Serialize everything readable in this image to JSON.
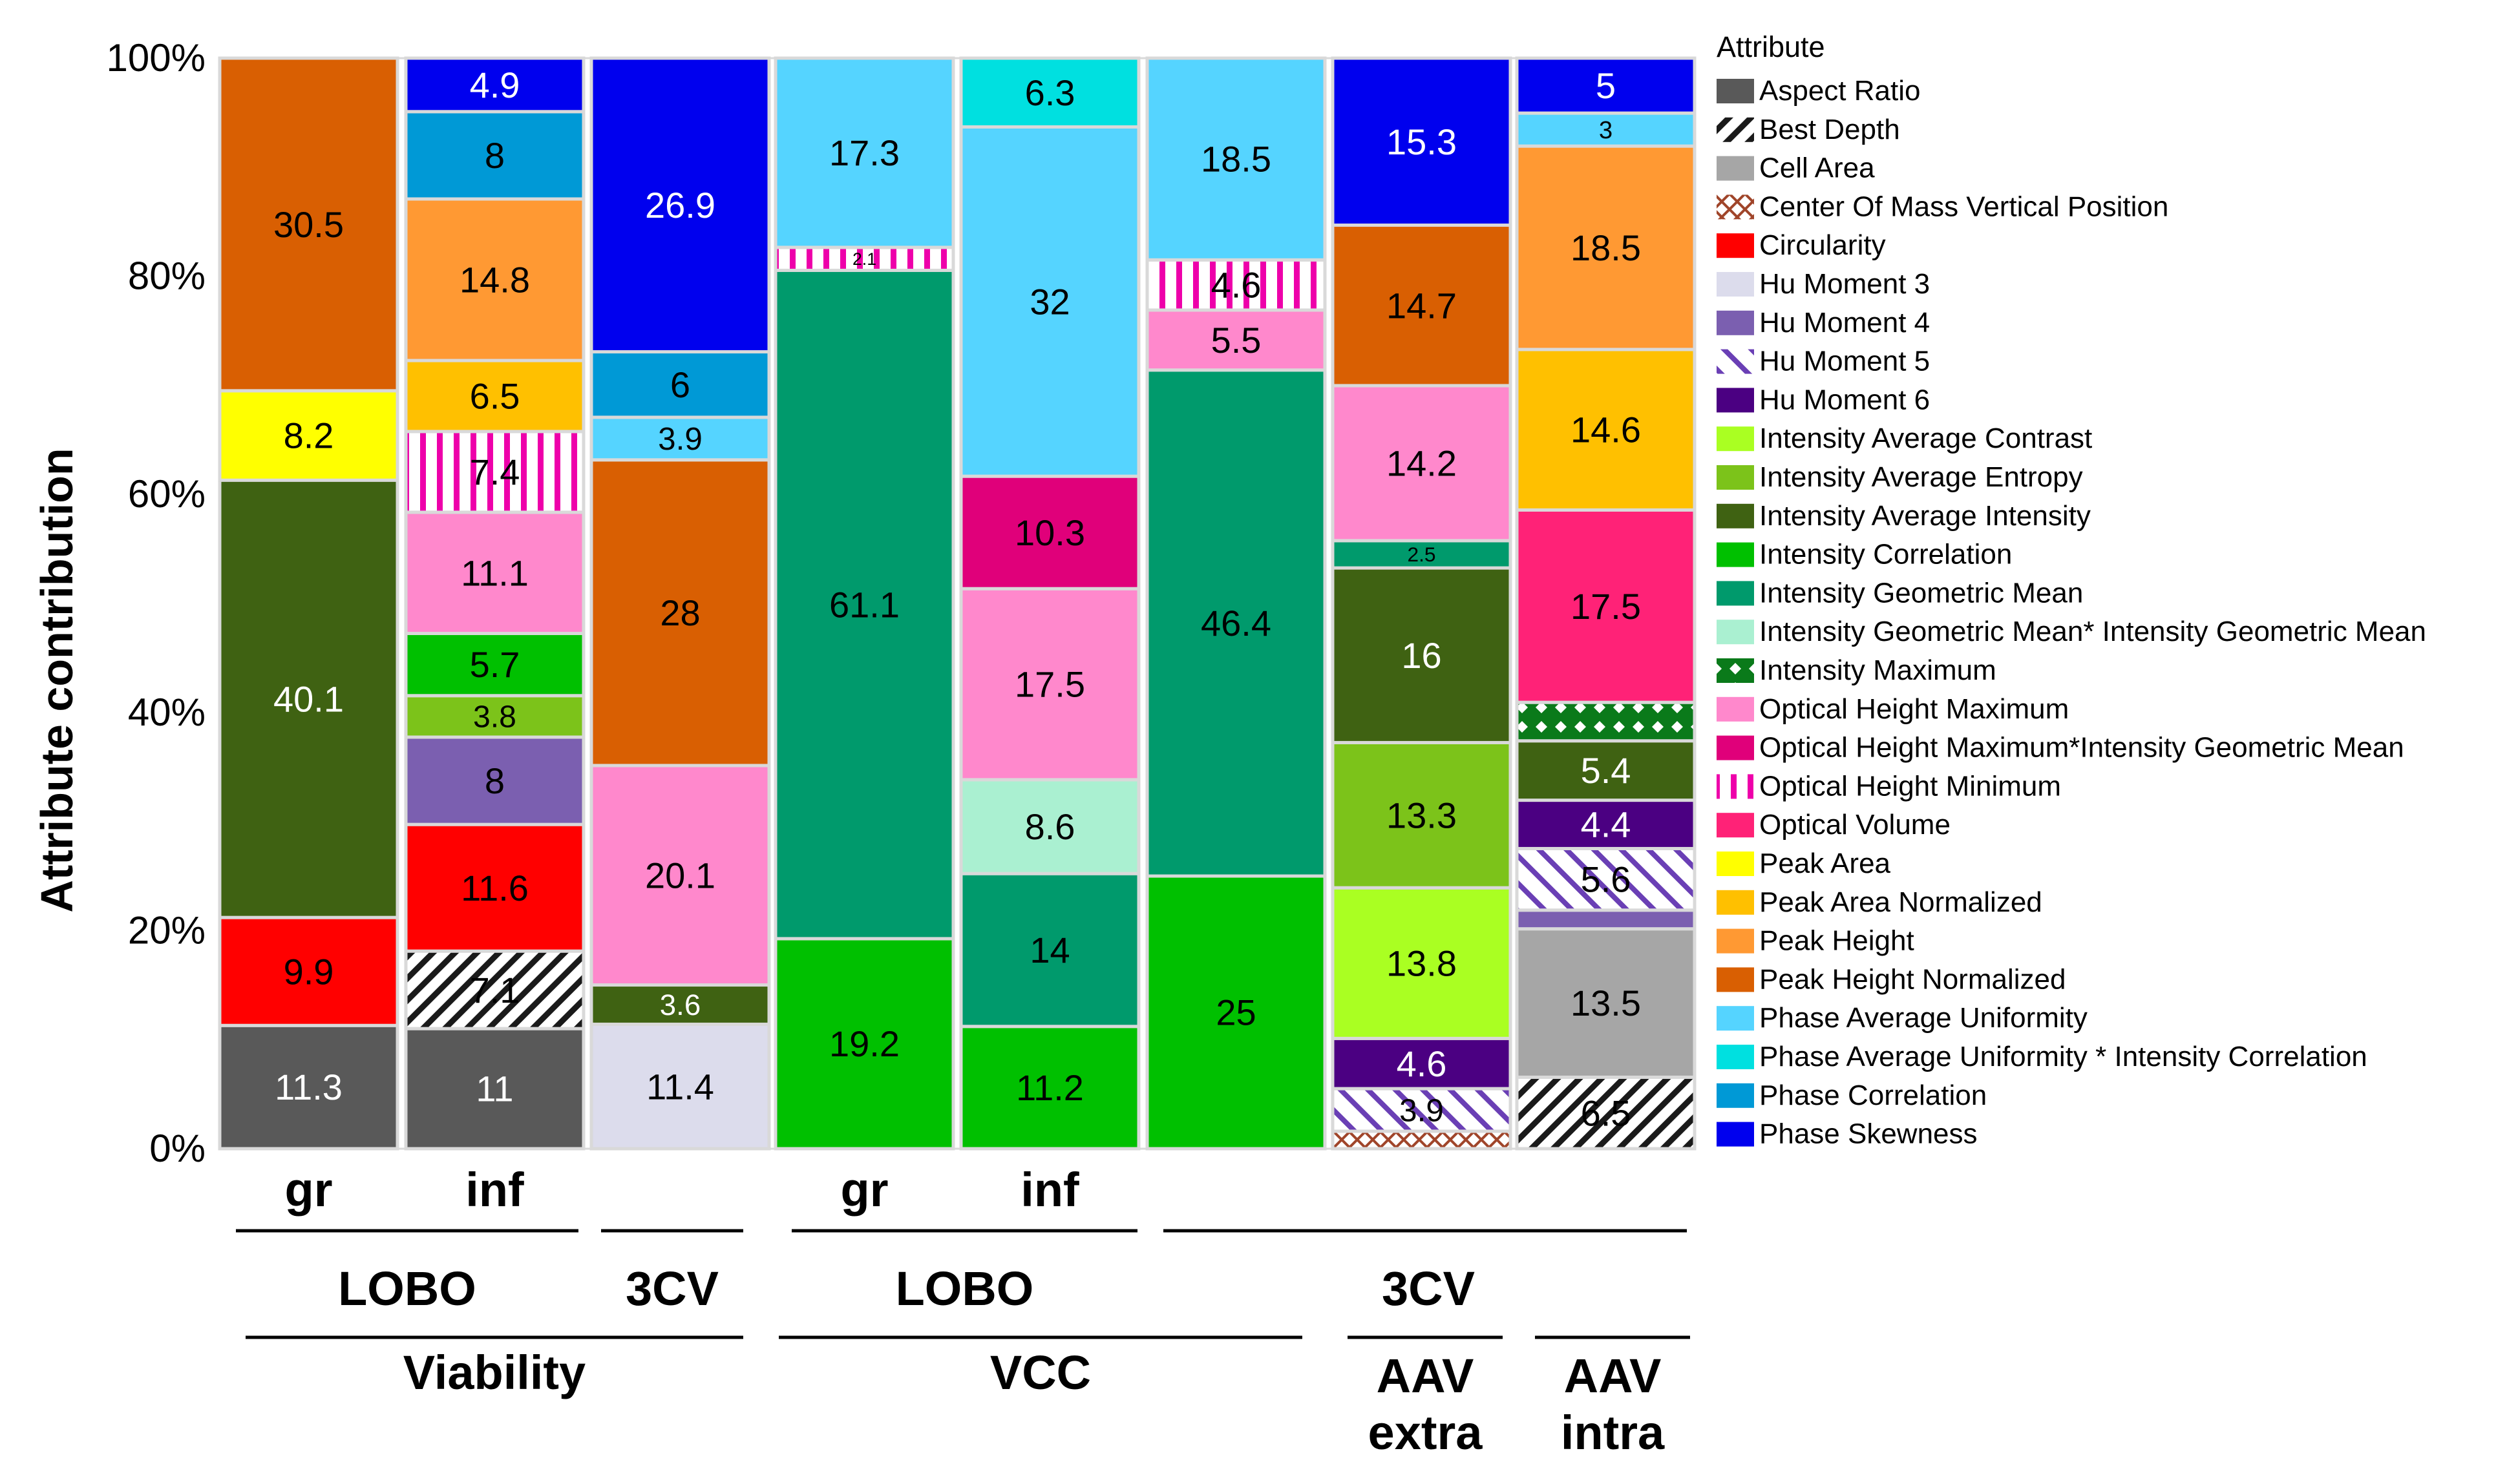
{
  "chart_data": {
    "type": "bar",
    "stacked": true,
    "normalized": true,
    "ylabel": "Attribute contribution",
    "yticks": [
      "0%",
      "20%",
      "40%",
      "60%",
      "80%",
      "100%"
    ],
    "ylim": [
      0,
      100
    ],
    "legend_title": "Attribute",
    "legend": [
      {
        "name": "Aspect Ratio",
        "color": "#595959",
        "pattern": "none"
      },
      {
        "name": "Best Depth",
        "color": "#ffffff",
        "pattern": "diag"
      },
      {
        "name": "Cell Area",
        "color": "#a6a6a6",
        "pattern": "none"
      },
      {
        "name": "Center Of Mass Vertical Position",
        "color": "#ffffff",
        "pattern": "crossbrown"
      },
      {
        "name": "Circularity",
        "color": "#ff0000",
        "pattern": "none"
      },
      {
        "name": "Hu Moment 3",
        "color": "#dcdcec",
        "pattern": "none"
      },
      {
        "name": "Hu Moment 4",
        "color": "#7b5fb0",
        "pattern": "none"
      },
      {
        "name": "Hu Moment 5",
        "color": "#ffffff",
        "pattern": "diagpurple"
      },
      {
        "name": "Hu Moment 6",
        "color": "#4b0082",
        "pattern": "none"
      },
      {
        "name": "Intensity Average Contrast",
        "color": "#aaff22",
        "pattern": "none"
      },
      {
        "name": "Intensity Average Entropy",
        "color": "#7cc31a",
        "pattern": "none"
      },
      {
        "name": "Intensity Average Intensity",
        "color": "#3f6212",
        "pattern": "none"
      },
      {
        "name": "Intensity Correlation",
        "color": "#00c000",
        "pattern": "none"
      },
      {
        "name": "Intensity Geometric Mean",
        "color": "#009a6c",
        "pattern": "none"
      },
      {
        "name": "Intensity Geometric Mean* Intensity Geometric Mean",
        "color": "#aaf0d1",
        "pattern": "none"
      },
      {
        "name": "Intensity Maximum",
        "color": "#0a7a1a",
        "pattern": "checker"
      },
      {
        "name": "Optical Height Maximum",
        "color": "#ff88cc",
        "pattern": "none"
      },
      {
        "name": "Optical Height Maximum*Intensity  Geometric Mean",
        "color": "#e0007a",
        "pattern": "none"
      },
      {
        "name": "Optical Height Minimum",
        "color": "#ffffff",
        "pattern": "vstripe"
      },
      {
        "name": "Optical Volume",
        "color": "#ff2277",
        "pattern": "none"
      },
      {
        "name": "Peak Area",
        "color": "#ffff00",
        "pattern": "none"
      },
      {
        "name": "Peak Area Normalized",
        "color": "#ffc000",
        "pattern": "none"
      },
      {
        "name": "Peak Height",
        "color": "#ff9933",
        "pattern": "none"
      },
      {
        "name": "Peak Height Normalized",
        "color": "#d95f02",
        "pattern": "none"
      },
      {
        "name": "Phase Average Uniformity",
        "color": "#55d4ff",
        "pattern": "none"
      },
      {
        "name": "Phase Average Uniformity * Intensity  Correlation",
        "color": "#00e0e0",
        "pattern": "none"
      },
      {
        "name": "Phase Correlation",
        "color": "#0099d6",
        "pattern": "none"
      },
      {
        "name": "Phase Skewness",
        "color": "#0000ee",
        "pattern": "none"
      }
    ],
    "bars": [
      {
        "label": "gr",
        "segments": [
          {
            "attr": "Aspect Ratio",
            "value": 11.3,
            "label": "11.3"
          },
          {
            "attr": "Circularity",
            "value": 9.9,
            "label": "9.9"
          },
          {
            "attr": "Intensity Average Intensity",
            "value": 40.1,
            "label": "40.1"
          },
          {
            "attr": "Peak Area",
            "value": 8.2,
            "label": "8.2"
          },
          {
            "attr": "Peak Height Normalized",
            "value": 30.5,
            "label": "30.5"
          }
        ]
      },
      {
        "label": "inf",
        "segments": [
          {
            "attr": "Aspect Ratio",
            "value": 11,
            "label": "11"
          },
          {
            "attr": "Best Depth",
            "value": 7.1,
            "label": "7.1"
          },
          {
            "attr": "Circularity",
            "value": 11.6,
            "label": "11.6"
          },
          {
            "attr": "Hu Moment 4",
            "value": 8,
            "label": "8"
          },
          {
            "attr": "Intensity Average Entropy",
            "value": 3.8,
            "label": "3.8"
          },
          {
            "attr": "Intensity Correlation",
            "value": 5.7,
            "label": "5.7"
          },
          {
            "attr": "Optical Height Maximum",
            "value": 11.1,
            "label": "11.1"
          },
          {
            "attr": "Optical Height Minimum",
            "value": 7.4,
            "label": "7.4"
          },
          {
            "attr": "Peak Area Normalized",
            "value": 6.5,
            "label": "6.5"
          },
          {
            "attr": "Peak Height",
            "value": 14.8,
            "label": "14.8"
          },
          {
            "attr": "Phase Correlation",
            "value": 8,
            "label": "8"
          },
          {
            "attr": "Phase Skewness",
            "value": 4.9,
            "label": "4.9"
          }
        ]
      },
      {
        "label": "",
        "segments": [
          {
            "attr": "Hu Moment 3",
            "value": 11.4,
            "label": "11.4"
          },
          {
            "attr": "Intensity Average Intensity",
            "value": 3.6,
            "label": "3.6"
          },
          {
            "attr": "Optical Height Maximum",
            "value": 20.1,
            "label": "20.1"
          },
          {
            "attr": "Peak Height Normalized",
            "value": 28,
            "label": "28"
          },
          {
            "attr": "Phase Average Uniformity",
            "value": 3.9,
            "label": "3.9"
          },
          {
            "attr": "Phase Correlation",
            "value": 6,
            "label": "6"
          },
          {
            "attr": "Phase Skewness",
            "value": 26.9,
            "label": "26.9"
          }
        ]
      },
      {
        "label": "gr",
        "segments": [
          {
            "attr": "Intensity Correlation",
            "value": 19.2,
            "label": "19.2"
          },
          {
            "attr": "Intensity Geometric Mean",
            "value": 61.1,
            "label": "61.1"
          },
          {
            "attr": "Optical Height Minimum",
            "value": 2.1,
            "label": "2.1"
          },
          {
            "attr": "Phase Average Uniformity",
            "value": 17.3,
            "label": "17.3"
          }
        ]
      },
      {
        "label": "inf",
        "segments": [
          {
            "attr": "Intensity Correlation",
            "value": 11.2,
            "label": "11.2"
          },
          {
            "attr": "Intensity Geometric Mean",
            "value": 14,
            "label": "14"
          },
          {
            "attr": "Intensity Geometric Mean* Intensity Geometric Mean",
            "value": 8.6,
            "label": "8.6"
          },
          {
            "attr": "Optical Height Maximum",
            "value": 17.5,
            "label": "17.5"
          },
          {
            "attr": "Optical Height Maximum*Intensity  Geometric Mean",
            "value": 10.3,
            "label": "10.3"
          },
          {
            "attr": "Phase Average Uniformity",
            "value": 32,
            "label": "32"
          },
          {
            "attr": "Phase Average Uniformity * Intensity  Correlation",
            "value": 6.3,
            "label": "6.3"
          }
        ]
      },
      {
        "label": "",
        "segments": [
          {
            "attr": "Intensity Correlation",
            "value": 25,
            "label": "25"
          },
          {
            "attr": "Intensity Geometric Mean",
            "value": 46.4,
            "label": "46.4"
          },
          {
            "attr": "Optical Height Maximum",
            "value": 5.5,
            "label": "5.5"
          },
          {
            "attr": "Optical Height Minimum",
            "value": 4.6,
            "label": "4.6"
          },
          {
            "attr": "Phase Average Uniformity",
            "value": 18.5,
            "label": "18.5"
          }
        ]
      },
      {
        "label": "",
        "segments": [
          {
            "attr": "Center Of Mass Vertical Position",
            "value": 1.6,
            "label": ""
          },
          {
            "attr": "Hu Moment 5",
            "value": 3.9,
            "label": "3.9"
          },
          {
            "attr": "Hu Moment 6",
            "value": 4.6,
            "label": "4.6"
          },
          {
            "attr": "Intensity Average Contrast",
            "value": 13.8,
            "label": "13.8"
          },
          {
            "attr": "Intensity Average Entropy",
            "value": 13.3,
            "label": "13.3"
          },
          {
            "attr": "Intensity Average Intensity",
            "value": 16,
            "label": "16"
          },
          {
            "attr": "Intensity Geometric Mean",
            "value": 2.5,
            "label": "2.5"
          },
          {
            "attr": "Optical Height Maximum",
            "value": 14.2,
            "label": "14.2"
          },
          {
            "attr": "Peak Height Normalized",
            "value": 14.7,
            "label": "14.7"
          },
          {
            "attr": "Phase Skewness",
            "value": 15.3,
            "label": "15.3"
          }
        ]
      },
      {
        "label": "",
        "segments": [
          {
            "attr": "Best Depth",
            "value": 6.5,
            "label": "6.5"
          },
          {
            "attr": "Cell Area",
            "value": 13.5,
            "label": "13.5"
          },
          {
            "attr": "Hu Moment 4",
            "value": 1.7,
            "label": ""
          },
          {
            "attr": "Hu Moment 5",
            "value": 5.6,
            "label": "5.6"
          },
          {
            "attr": "Hu Moment 6",
            "value": 4.4,
            "label": "4.4"
          },
          {
            "attr": "Intensity Average Intensity",
            "value": 5.4,
            "label": "5.4"
          },
          {
            "attr": "Intensity Maximum",
            "value": 3.5,
            "label": ""
          },
          {
            "attr": "Optical Volume",
            "value": 17.5,
            "label": "17.5"
          },
          {
            "attr": "Peak Area Normalized",
            "value": 14.6,
            "label": "14.6"
          },
          {
            "attr": "Peak Height",
            "value": 18.5,
            "label": "18.5"
          },
          {
            "attr": "Phase Average Uniformity",
            "value": 3,
            "label": "3"
          },
          {
            "attr": "Phase Skewness",
            "value": 5,
            "label": "5"
          }
        ]
      }
    ],
    "groups": [
      {
        "label": "LOBO",
        "bars": [
          0,
          1
        ],
        "level": 1
      },
      {
        "label": "3CV",
        "bars": [
          2
        ],
        "level": 1
      },
      {
        "label": "LOBO",
        "bars": [
          3,
          4
        ],
        "level": 1
      },
      {
        "label": "3CV",
        "bars": [
          5,
          7
        ],
        "level": 1
      },
      {
        "label": "Viability",
        "bars": [
          0,
          2
        ],
        "level": 2
      },
      {
        "label": "VCC",
        "bars": [
          3,
          5
        ],
        "level": 2
      },
      {
        "label": "AAV\nextra",
        "bars": [
          6
        ],
        "level": 2
      },
      {
        "label": "AAV\nintra",
        "bars": [
          7
        ],
        "level": 2
      }
    ]
  }
}
